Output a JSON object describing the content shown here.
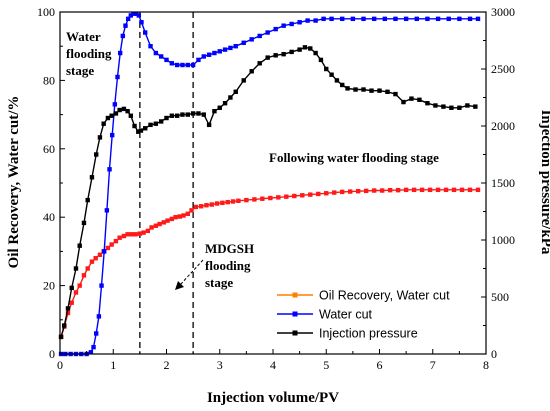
{
  "chart_data": {
    "type": "line",
    "xlabel": "Injection volume/PV",
    "ylabel": "Oil Recovery, Water cut/%",
    "y2label": "Injection pressure/kPa",
    "xlim": [
      0,
      8
    ],
    "ylim": [
      0,
      100
    ],
    "y2lim": [
      0,
      3000
    ],
    "xticks": [
      "0",
      "1",
      "2",
      "3",
      "4",
      "5",
      "6",
      "7",
      "8"
    ],
    "yticks": [
      "0",
      "20",
      "40",
      "60",
      "80",
      "100"
    ],
    "y2ticks": [
      "0",
      "500",
      "1000",
      "1500",
      "2000",
      "2500",
      "3000"
    ],
    "grid": false,
    "legend_position": "bottom-right",
    "stage_lines_x": [
      1.5,
      2.5
    ],
    "annotations": {
      "water_flooding": [
        "Water",
        "flooding",
        "stage"
      ],
      "following": "Following water flooding stage",
      "mdgsh": [
        "MDGSH",
        "flooding",
        "stage"
      ]
    },
    "series": [
      {
        "name": "Oil Recovery, Water cut",
        "axis": "left",
        "color": "#ff1a1a",
        "legend_color": "#ff7f00",
        "x": [
          0.02,
          0.08,
          0.15,
          0.22,
          0.3,
          0.37,
          0.45,
          0.52,
          0.6,
          0.67,
          0.75,
          0.82,
          0.9,
          0.97,
          1.05,
          1.12,
          1.2,
          1.27,
          1.35,
          1.42,
          1.5,
          1.57,
          1.65,
          1.72,
          1.8,
          1.87,
          1.95,
          2.02,
          2.1,
          2.17,
          2.25,
          2.32,
          2.4,
          2.47,
          2.55,
          2.65,
          2.75,
          2.85,
          2.95,
          3.05,
          3.15,
          3.25,
          3.35,
          3.5,
          3.65,
          3.8,
          3.95,
          4.1,
          4.25,
          4.4,
          4.55,
          4.7,
          4.85,
          5.0,
          5.15,
          5.3,
          5.45,
          5.6,
          5.75,
          5.9,
          6.05,
          6.2,
          6.35,
          6.5,
          6.65,
          6.8,
          6.95,
          7.1,
          7.25,
          7.4,
          7.55,
          7.7,
          7.85
        ],
        "values": [
          5,
          8,
          12,
          15,
          18,
          20,
          23,
          25,
          27,
          28,
          29,
          30,
          31,
          32,
          33,
          34,
          34.5,
          35,
          35,
          35,
          35.2,
          35.5,
          36,
          37,
          37.5,
          38,
          38.5,
          39,
          39.5,
          40,
          40.2,
          40.5,
          41,
          42,
          43,
          43.2,
          43.5,
          43.7,
          44,
          44.2,
          44.4,
          44.6,
          44.8,
          45,
          45.2,
          45.4,
          45.6,
          45.8,
          46,
          46.2,
          46.4,
          46.6,
          46.8,
          47,
          47.2,
          47.4,
          47.5,
          47.6,
          47.7,
          47.8,
          47.8,
          47.9,
          47.9,
          48,
          48,
          48,
          48,
          48,
          48,
          48,
          48,
          48,
          48
        ]
      },
      {
        "name": "Water cut",
        "axis": "left",
        "color": "#0000ff",
        "x": [
          0.02,
          0.1,
          0.2,
          0.3,
          0.4,
          0.5,
          0.58,
          0.63,
          0.68,
          0.73,
          0.78,
          0.83,
          0.88,
          0.93,
          0.98,
          1.03,
          1.08,
          1.13,
          1.18,
          1.23,
          1.28,
          1.33,
          1.38,
          1.43,
          1.48,
          1.53,
          1.6,
          1.7,
          1.8,
          1.9,
          2.0,
          2.1,
          2.2,
          2.3,
          2.4,
          2.5,
          2.6,
          2.7,
          2.8,
          2.9,
          3.0,
          3.1,
          3.2,
          3.3,
          3.45,
          3.6,
          3.75,
          3.9,
          4.05,
          4.2,
          4.35,
          4.5,
          4.65,
          4.8,
          4.95,
          5.1,
          5.3,
          5.5,
          5.7,
          5.9,
          6.1,
          6.3,
          6.5,
          6.7,
          6.9,
          7.1,
          7.3,
          7.5,
          7.7,
          7.85
        ],
        "values": [
          0,
          0,
          0,
          0,
          0,
          0,
          0.5,
          2,
          6,
          11,
          20,
          30,
          42,
          54,
          64,
          73,
          81,
          88,
          93,
          96,
          98,
          99,
          99.5,
          99.5,
          99,
          97,
          94,
          90,
          88,
          87,
          86,
          85,
          84.5,
          84.5,
          84.5,
          84.5,
          86,
          87,
          87.5,
          88,
          88.5,
          89,
          89.5,
          90,
          91,
          92,
          93,
          94,
          95,
          96,
          96.5,
          97,
          97.5,
          97.5,
          98,
          98,
          98,
          98,
          98,
          98,
          98,
          98,
          98,
          98,
          98,
          98,
          98,
          98,
          98,
          98
        ]
      },
      {
        "name": "Injection pressure",
        "axis": "right",
        "color": "#000000",
        "x": [
          0.02,
          0.08,
          0.15,
          0.22,
          0.3,
          0.37,
          0.45,
          0.52,
          0.6,
          0.68,
          0.75,
          0.82,
          0.9,
          0.97,
          1.05,
          1.12,
          1.2,
          1.27,
          1.33,
          1.4,
          1.47,
          1.52,
          1.6,
          1.7,
          1.8,
          1.9,
          2.0,
          2.1,
          2.2,
          2.3,
          2.4,
          2.5,
          2.6,
          2.7,
          2.8,
          2.9,
          3.0,
          3.1,
          3.2,
          3.3,
          3.45,
          3.6,
          3.75,
          3.9,
          4.05,
          4.2,
          4.35,
          4.5,
          4.6,
          4.7,
          4.8,
          4.9,
          5.0,
          5.1,
          5.2,
          5.3,
          5.4,
          5.55,
          5.7,
          5.85,
          6.0,
          6.15,
          6.3,
          6.45,
          6.6,
          6.75,
          6.9,
          7.05,
          7.2,
          7.35,
          7.5,
          7.65,
          7.8
        ],
        "values": [
          150,
          250,
          400,
          580,
          750,
          950,
          1150,
          1350,
          1550,
          1750,
          1900,
          2020,
          2070,
          2090,
          2110,
          2140,
          2150,
          2130,
          2090,
          2000,
          1950,
          1960,
          1980,
          2010,
          2020,
          2040,
          2070,
          2090,
          2090,
          2100,
          2100,
          2110,
          2110,
          2100,
          2010,
          2130,
          2160,
          2200,
          2250,
          2300,
          2400,
          2480,
          2550,
          2600,
          2620,
          2630,
          2650,
          2670,
          2690,
          2680,
          2640,
          2580,
          2500,
          2450,
          2400,
          2360,
          2330,
          2320,
          2320,
          2310,
          2310,
          2300,
          2280,
          2210,
          2240,
          2230,
          2200,
          2180,
          2170,
          2160,
          2160,
          2180,
          2170
        ]
      }
    ]
  }
}
